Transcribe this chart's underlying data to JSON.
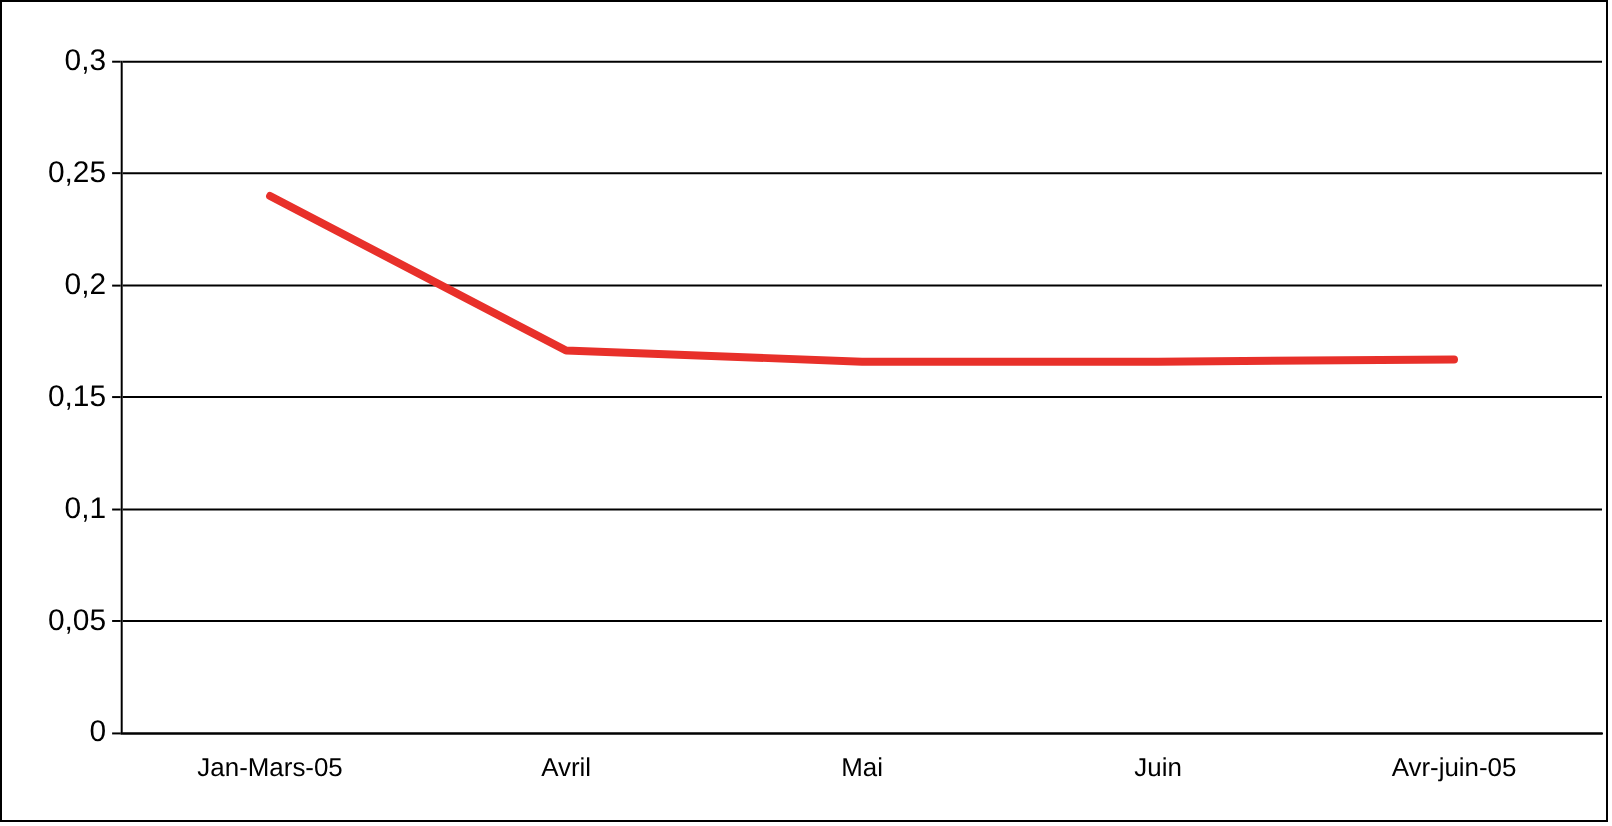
{
  "chart_data": {
    "type": "line",
    "categories": [
      "Jan-Mars-05",
      "Avril",
      "Mai",
      "Juin",
      "Avr-juin-05"
    ],
    "series": [
      {
        "color": "#e8302a",
        "values": [
          0.24,
          0.171,
          0.166,
          0.166,
          0.167
        ]
      }
    ],
    "ylim": [
      0,
      0.3
    ],
    "yticks": [
      0,
      {
        "value": 0.05,
        "label": "0,05"
      },
      {
        "value": 0.1,
        "label": "0,1"
      },
      {
        "value": 0.15,
        "label": "0,15"
      },
      {
        "value": 0.2,
        "label": "0,2"
      },
      {
        "value": 0.25,
        "label": "0,25"
      },
      {
        "value": 0.3,
        "label": "0,3"
      }
    ],
    "grid": "y",
    "legend": false,
    "marker": "none",
    "line_style": "solid"
  }
}
